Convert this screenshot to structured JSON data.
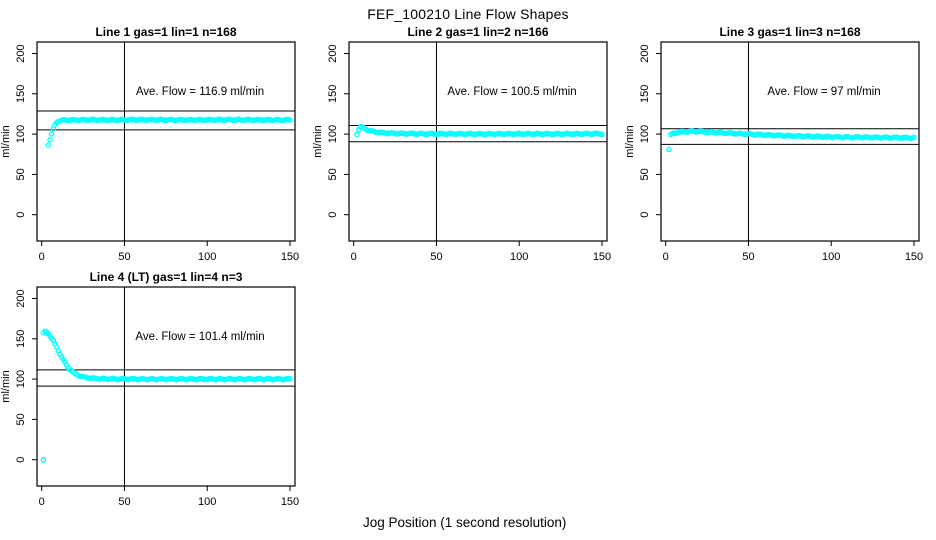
{
  "page": {
    "main_title": "FEF_100210  Line Flow Shapes",
    "x_axis_label": "Jog Position (1 second resolution)"
  },
  "colors": {
    "point": "#00FFFF",
    "axis": "#000000",
    "text": "#000000",
    "background": "#FFFFFF"
  },
  "chart_data": [
    {
      "type": "scatter",
      "panel": 1,
      "title": "Line 1 gas=1 lin=1 n=168",
      "n": 168,
      "ave_flow": 116.9,
      "annotation": "Ave. Flow =  116.9  ml/min",
      "ylabel": "ml/min",
      "xlim": [
        0,
        150
      ],
      "ylim": [
        0,
        200
      ],
      "x_ticks": [
        0,
        50,
        100,
        150
      ],
      "y_ticks": [
        0,
        50,
        100,
        150,
        200
      ],
      "vline_x": 50,
      "hlines": [
        128.6,
        105.2
      ],
      "points": [
        [
          4,
          87
        ],
        [
          6,
          100
        ],
        [
          7,
          106
        ],
        [
          8,
          111
        ],
        [
          9,
          114
        ],
        [
          10,
          116
        ],
        [
          12,
          117
        ],
        [
          15,
          117.4
        ],
        [
          20,
          117.5
        ],
        [
          30,
          117.7
        ],
        [
          40,
          117.5
        ],
        [
          50,
          117.6
        ],
        [
          60,
          117.8
        ],
        [
          80,
          117.5
        ],
        [
          100,
          117.6
        ],
        [
          120,
          117.7
        ],
        [
          135,
          117.5
        ],
        [
          150,
          117.5
        ]
      ],
      "outliers": []
    },
    {
      "type": "scatter",
      "panel": 2,
      "title": "Line 2 gas=1 lin=2 n=166",
      "n": 166,
      "ave_flow": 100.5,
      "annotation": "Ave. Flow =  100.5  ml/min",
      "ylabel": "ml/min",
      "xlim": [
        0,
        150
      ],
      "ylim": [
        0,
        200
      ],
      "x_ticks": [
        0,
        50,
        100,
        150
      ],
      "y_ticks": [
        0,
        50,
        100,
        150,
        200
      ],
      "vline_x": 50,
      "hlines": [
        110.6,
        90.5
      ],
      "points": [
        [
          2,
          100
        ],
        [
          3,
          106
        ],
        [
          4,
          109
        ],
        [
          5,
          108.5
        ],
        [
          6,
          107.5
        ],
        [
          8,
          105.5
        ],
        [
          10,
          104
        ],
        [
          13,
          102.8
        ],
        [
          16,
          102
        ],
        [
          20,
          101.3
        ],
        [
          25,
          100.8
        ],
        [
          30,
          100.6
        ],
        [
          40,
          100.4
        ],
        [
          60,
          100.3
        ],
        [
          80,
          100.2
        ],
        [
          100,
          100.3
        ],
        [
          120,
          100.2
        ],
        [
          150,
          100.4
        ]
      ],
      "outliers": []
    },
    {
      "type": "scatter",
      "panel": 3,
      "title": "Line 3 gas=1 lin=3 n=168",
      "n": 168,
      "ave_flow": 97,
      "annotation": "Ave. Flow =  97  ml/min",
      "ylabel": "ml/min",
      "xlim": [
        0,
        150
      ],
      "ylim": [
        0,
        200
      ],
      "x_ticks": [
        0,
        50,
        100,
        150
      ],
      "y_ticks": [
        0,
        50,
        100,
        150,
        200
      ],
      "vline_x": 50,
      "hlines": [
        106.7,
        87.3
      ],
      "points": [
        [
          3,
          99
        ],
        [
          5,
          101
        ],
        [
          8,
          102.5
        ],
        [
          12,
          103
        ],
        [
          16,
          103.2
        ],
        [
          20,
          103.3
        ],
        [
          25,
          102.5
        ],
        [
          30,
          102
        ],
        [
          40,
          101
        ],
        [
          50,
          100
        ],
        [
          60,
          99
        ],
        [
          70,
          98.2
        ],
        [
          80,
          97.5
        ],
        [
          90,
          97
        ],
        [
          100,
          96.5
        ],
        [
          110,
          96.2
        ],
        [
          120,
          96
        ],
        [
          130,
          95.8
        ],
        [
          140,
          95.5
        ],
        [
          150,
          95.3
        ]
      ],
      "outliers": [
        [
          2,
          81
        ]
      ]
    },
    {
      "type": "scatter",
      "panel": 4,
      "title": "Line 4 (LT) gas=1 lin=4 n=3",
      "n": 3,
      "ave_flow": 101.4,
      "annotation": "Ave. Flow =  101.4  ml/min",
      "ylabel": "ml/min",
      "xlim": [
        0,
        150
      ],
      "ylim": [
        0,
        200
      ],
      "x_ticks": [
        0,
        50,
        100,
        150
      ],
      "y_ticks": [
        0,
        50,
        100,
        150,
        200
      ],
      "vline_x": 50,
      "hlines": [
        111.5,
        91.3
      ],
      "points": [
        [
          1,
          157
        ],
        [
          2,
          158.5
        ],
        [
          3,
          158
        ],
        [
          4,
          156.5
        ],
        [
          5,
          154
        ],
        [
          6,
          151
        ],
        [
          7,
          147.5
        ],
        [
          8,
          143.5
        ],
        [
          9,
          139.5
        ],
        [
          10,
          135.5
        ],
        [
          11,
          131.5
        ],
        [
          12,
          127.5
        ],
        [
          13,
          124
        ],
        [
          14,
          120.5
        ],
        [
          15,
          117.5
        ],
        [
          16,
          114.5
        ],
        [
          17,
          112
        ],
        [
          18,
          110
        ],
        [
          19,
          108.2
        ],
        [
          20,
          106.8
        ],
        [
          22,
          104.8
        ],
        [
          24,
          103.3
        ],
        [
          26,
          102.3
        ],
        [
          28,
          101.6
        ],
        [
          30,
          101.1
        ],
        [
          35,
          100.5
        ],
        [
          40,
          100.3
        ],
        [
          50,
          100.1
        ],
        [
          60,
          100
        ],
        [
          80,
          100
        ],
        [
          100,
          100
        ],
        [
          120,
          100
        ],
        [
          150,
          100
        ]
      ],
      "outliers": [
        [
          1,
          0
        ]
      ]
    }
  ]
}
